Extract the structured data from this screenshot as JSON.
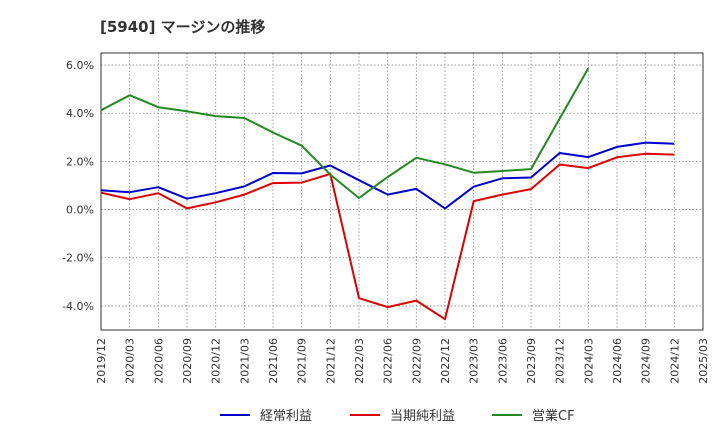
{
  "chart_data": {
    "type": "line",
    "title": "[5940]  マージンの推移",
    "xlabel": "",
    "ylabel": "",
    "ylim": [
      -5.0,
      6.5
    ],
    "y_ticks": [
      6.0,
      4.0,
      2.0,
      0.0,
      -2.0,
      -4.0
    ],
    "y_tick_labels": [
      "6.0%",
      "4.0%",
      "2.0%",
      "0.0%",
      "-2.0%",
      "-4.0%"
    ],
    "x": [
      "2019/12",
      "2020/03",
      "2020/06",
      "2020/09",
      "2020/12",
      "2021/03",
      "2021/06",
      "2021/09",
      "2021/12",
      "2022/03",
      "2022/06",
      "2022/09",
      "2022/12",
      "2023/03",
      "2023/06",
      "2023/09",
      "2023/12",
      "2024/03",
      "2024/06",
      "2024/09",
      "2024/12",
      "2025/03"
    ],
    "grid": true,
    "legend_position": "bottom",
    "series": [
      {
        "name": "経常利益",
        "color": "#0000cc",
        "values": [
          0.8,
          0.72,
          0.93,
          0.45,
          0.68,
          0.96,
          1.52,
          1.5,
          1.83,
          1.22,
          0.62,
          0.86,
          0.05,
          0.95,
          1.3,
          1.33,
          2.35,
          2.18,
          2.6,
          2.78,
          2.73,
          null
        ]
      },
      {
        "name": "当期純利益",
        "color": "#dd0000",
        "values": [
          0.7,
          0.43,
          0.68,
          0.05,
          0.3,
          0.62,
          1.1,
          1.12,
          1.48,
          -3.68,
          -4.05,
          -3.78,
          -4.55,
          0.35,
          0.62,
          0.85,
          1.87,
          1.72,
          2.17,
          2.32,
          2.28,
          null
        ]
      },
      {
        "name": "営業CF",
        "color": "#228822",
        "values": [
          4.12,
          4.75,
          4.25,
          4.08,
          3.88,
          3.8,
          3.2,
          2.65,
          1.45,
          0.48,
          1.35,
          2.15,
          1.88,
          1.53,
          1.6,
          1.68,
          3.78,
          5.87,
          null,
          null,
          null,
          null
        ]
      }
    ]
  }
}
